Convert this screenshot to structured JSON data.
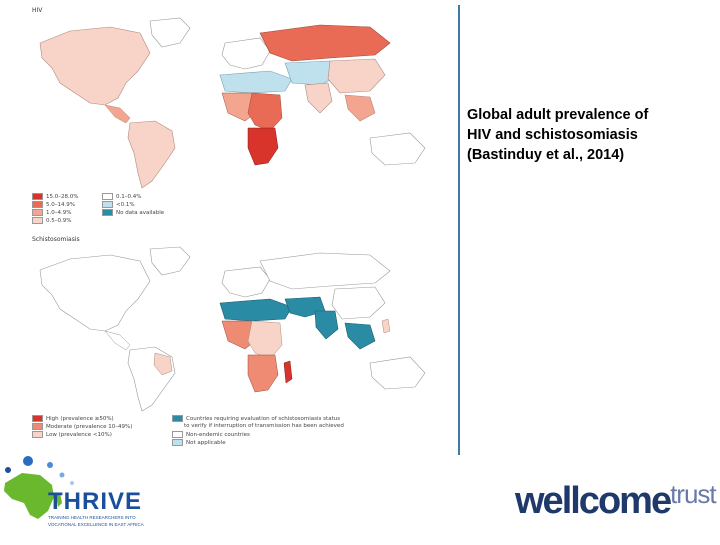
{
  "caption": {
    "line1": "Global adult prevalence of",
    "line2": "HIV  and  schistosomiasis",
    "line3": "(Bastinduy et al., 2014)"
  },
  "hiv_map": {
    "title": "HIV",
    "legend": [
      {
        "label": "15.0–28.0%",
        "color": "#d9342b"
      },
      {
        "label": "5.0–14.9%",
        "color": "#e96a55"
      },
      {
        "label": "1.0–4.9%",
        "color": "#f3a58f"
      },
      {
        "label": "0.5–0.9%",
        "color": "#f8d3c7"
      },
      {
        "label": "0.1–0.4%",
        "color": "#ffffff"
      },
      {
        "label": "<0.1%",
        "color": "#bfe1ee"
      },
      {
        "label": "No data available",
        "color": "#2a8ba5"
      }
    ]
  },
  "schisto_map": {
    "title": "Schistosomiasis",
    "legend": [
      {
        "label": "High (prevalence ≥50%)",
        "color": "#d9342b"
      },
      {
        "label": "Moderate (prevalence 10–49%)",
        "color": "#ef8a73"
      },
      {
        "label": "Low (prevalence <10%)",
        "color": "#f8d3c7"
      },
      {
        "label": "Countries requiring evaluation of schistosomiasis status",
        "color": "#2a8ba5"
      },
      {
        "label": "to verify if interruption of transmission has been achieved",
        "color": ""
      },
      {
        "label": "Non-endemic countries",
        "color": "#ffffff"
      },
      {
        "label": "Not applicable",
        "color": "#bfe1ee"
      }
    ]
  },
  "logos": {
    "thrive": "THRIVE",
    "thrive_tagline1": "TRAINING HEALTH RESEARCHERS INTO",
    "thrive_tagline2": "VOCATIONAL EXCELLENCE IN EAST AFRICA",
    "wellcome": "wellcome",
    "trust": "trust"
  },
  "colors": {
    "frame": "#3d7ca0",
    "land_white": "#ffffff",
    "hiv_high": "#d9342b",
    "hiv_mid": "#e96a55",
    "hiv_low": "#f3a58f",
    "hiv_lower": "#f8d3c7",
    "light_blue": "#bfe1ee",
    "teal": "#2a8ba5"
  }
}
